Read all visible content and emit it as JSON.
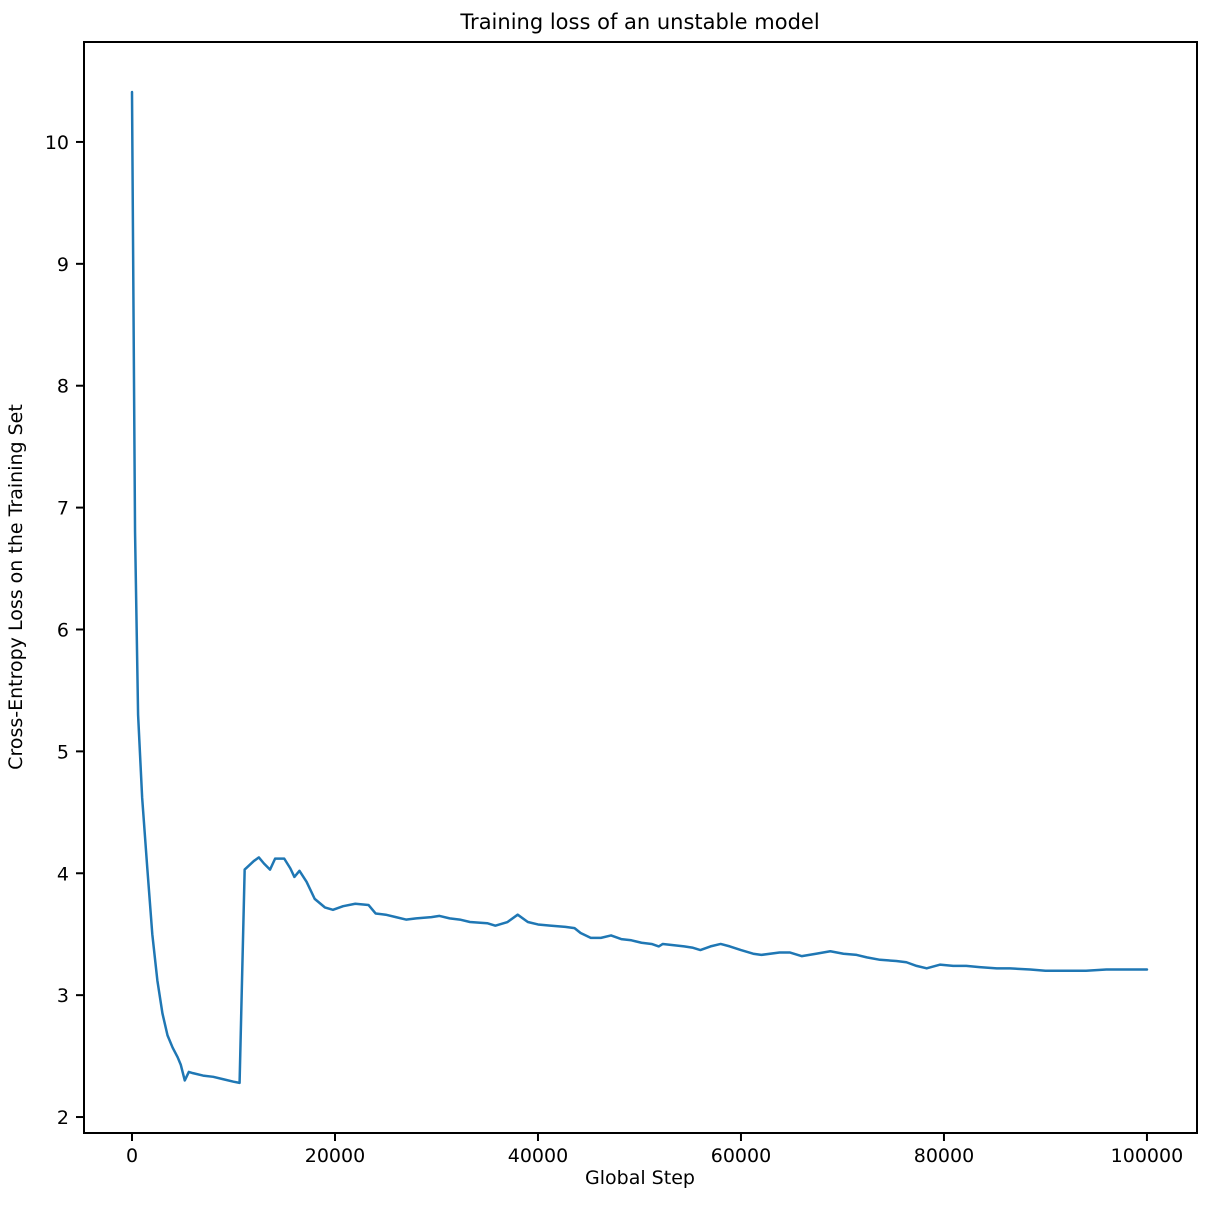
{
  "title": "Training loss of an unstable model",
  "xlabel": "Global Step",
  "ylabel": "Cross-Entropy Loss on the Training Set",
  "colors": {
    "line": "#1f77b4",
    "axis": "#000000",
    "background": "#ffffff"
  },
  "chart_data": {
    "type": "line",
    "title": "Training loss of an unstable model",
    "xlabel": "Global Step",
    "ylabel": "Cross-Entropy Loss on the Training Set",
    "xlim": [
      -4729,
      104931
    ],
    "ylim": [
      1.869,
      10.82
    ],
    "x_ticks": [
      0,
      20000,
      40000,
      60000,
      80000,
      100000
    ],
    "x_tick_labels": [
      "0",
      "20000",
      "40000",
      "60000",
      "80000",
      "100000"
    ],
    "y_ticks": [
      2,
      3,
      4,
      5,
      6,
      7,
      8,
      9,
      10
    ],
    "y_tick_labels": [
      "2",
      "3",
      "4",
      "5",
      "6",
      "7",
      "8",
      "9",
      "10"
    ],
    "grid": false,
    "legend_position": "none",
    "series": [
      {
        "name": "training-loss",
        "color": "#1f77b4",
        "points": [
          [
            0,
            10.41
          ],
          [
            300,
            6.8
          ],
          [
            600,
            5.3
          ],
          [
            1000,
            4.62
          ],
          [
            1500,
            4.05
          ],
          [
            2000,
            3.5
          ],
          [
            2500,
            3.12
          ],
          [
            3000,
            2.85
          ],
          [
            3500,
            2.67
          ],
          [
            4000,
            2.57
          ],
          [
            4500,
            2.49
          ],
          [
            4800,
            2.43
          ],
          [
            5200,
            2.3
          ],
          [
            5600,
            2.37
          ],
          [
            6000,
            2.36
          ],
          [
            7000,
            2.34
          ],
          [
            8000,
            2.33
          ],
          [
            9000,
            2.31
          ],
          [
            10000,
            2.29
          ],
          [
            10600,
            2.28
          ],
          [
            11100,
            4.03
          ],
          [
            12000,
            4.1
          ],
          [
            12500,
            4.13
          ],
          [
            13000,
            4.08
          ],
          [
            13600,
            4.03
          ],
          [
            14100,
            4.12
          ],
          [
            15000,
            4.12
          ],
          [
            15600,
            4.04
          ],
          [
            16000,
            3.97
          ],
          [
            16500,
            4.02
          ],
          [
            17200,
            3.93
          ],
          [
            18000,
            3.79
          ],
          [
            19000,
            3.72
          ],
          [
            19800,
            3.7
          ],
          [
            20800,
            3.73
          ],
          [
            22000,
            3.75
          ],
          [
            23300,
            3.74
          ],
          [
            24000,
            3.67
          ],
          [
            25000,
            3.66
          ],
          [
            26000,
            3.64
          ],
          [
            27000,
            3.62
          ],
          [
            28000,
            3.63
          ],
          [
            29500,
            3.64
          ],
          [
            30300,
            3.65
          ],
          [
            31300,
            3.63
          ],
          [
            32300,
            3.62
          ],
          [
            33300,
            3.6
          ],
          [
            35000,
            3.59
          ],
          [
            35800,
            3.57
          ],
          [
            37000,
            3.6
          ],
          [
            38000,
            3.66
          ],
          [
            39000,
            3.6
          ],
          [
            40000,
            3.58
          ],
          [
            41200,
            3.57
          ],
          [
            42700,
            3.56
          ],
          [
            43600,
            3.55
          ],
          [
            44200,
            3.51
          ],
          [
            45200,
            3.47
          ],
          [
            46200,
            3.47
          ],
          [
            47200,
            3.49
          ],
          [
            48200,
            3.46
          ],
          [
            49200,
            3.45
          ],
          [
            50200,
            3.43
          ],
          [
            51200,
            3.42
          ],
          [
            51900,
            3.4
          ],
          [
            52300,
            3.42
          ],
          [
            53300,
            3.41
          ],
          [
            54400,
            3.4
          ],
          [
            55200,
            3.39
          ],
          [
            56000,
            3.37
          ],
          [
            57000,
            3.4
          ],
          [
            58000,
            3.42
          ],
          [
            58900,
            3.4
          ],
          [
            60000,
            3.37
          ],
          [
            61200,
            3.34
          ],
          [
            62000,
            3.33
          ],
          [
            63800,
            3.35
          ],
          [
            64800,
            3.35
          ],
          [
            66000,
            3.32
          ],
          [
            67400,
            3.34
          ],
          [
            68800,
            3.36
          ],
          [
            70100,
            3.34
          ],
          [
            71400,
            3.33
          ],
          [
            72400,
            3.31
          ],
          [
            73700,
            3.29
          ],
          [
            75300,
            3.28
          ],
          [
            76300,
            3.27
          ],
          [
            77300,
            3.24
          ],
          [
            78300,
            3.22
          ],
          [
            79600,
            3.25
          ],
          [
            80900,
            3.24
          ],
          [
            82200,
            3.24
          ],
          [
            83500,
            3.23
          ],
          [
            85200,
            3.22
          ],
          [
            86500,
            3.22
          ],
          [
            88500,
            3.21
          ],
          [
            90000,
            3.2
          ],
          [
            92000,
            3.2
          ],
          [
            94000,
            3.2
          ],
          [
            96000,
            3.21
          ],
          [
            98000,
            3.21
          ],
          [
            100000,
            3.21
          ]
        ]
      }
    ]
  }
}
